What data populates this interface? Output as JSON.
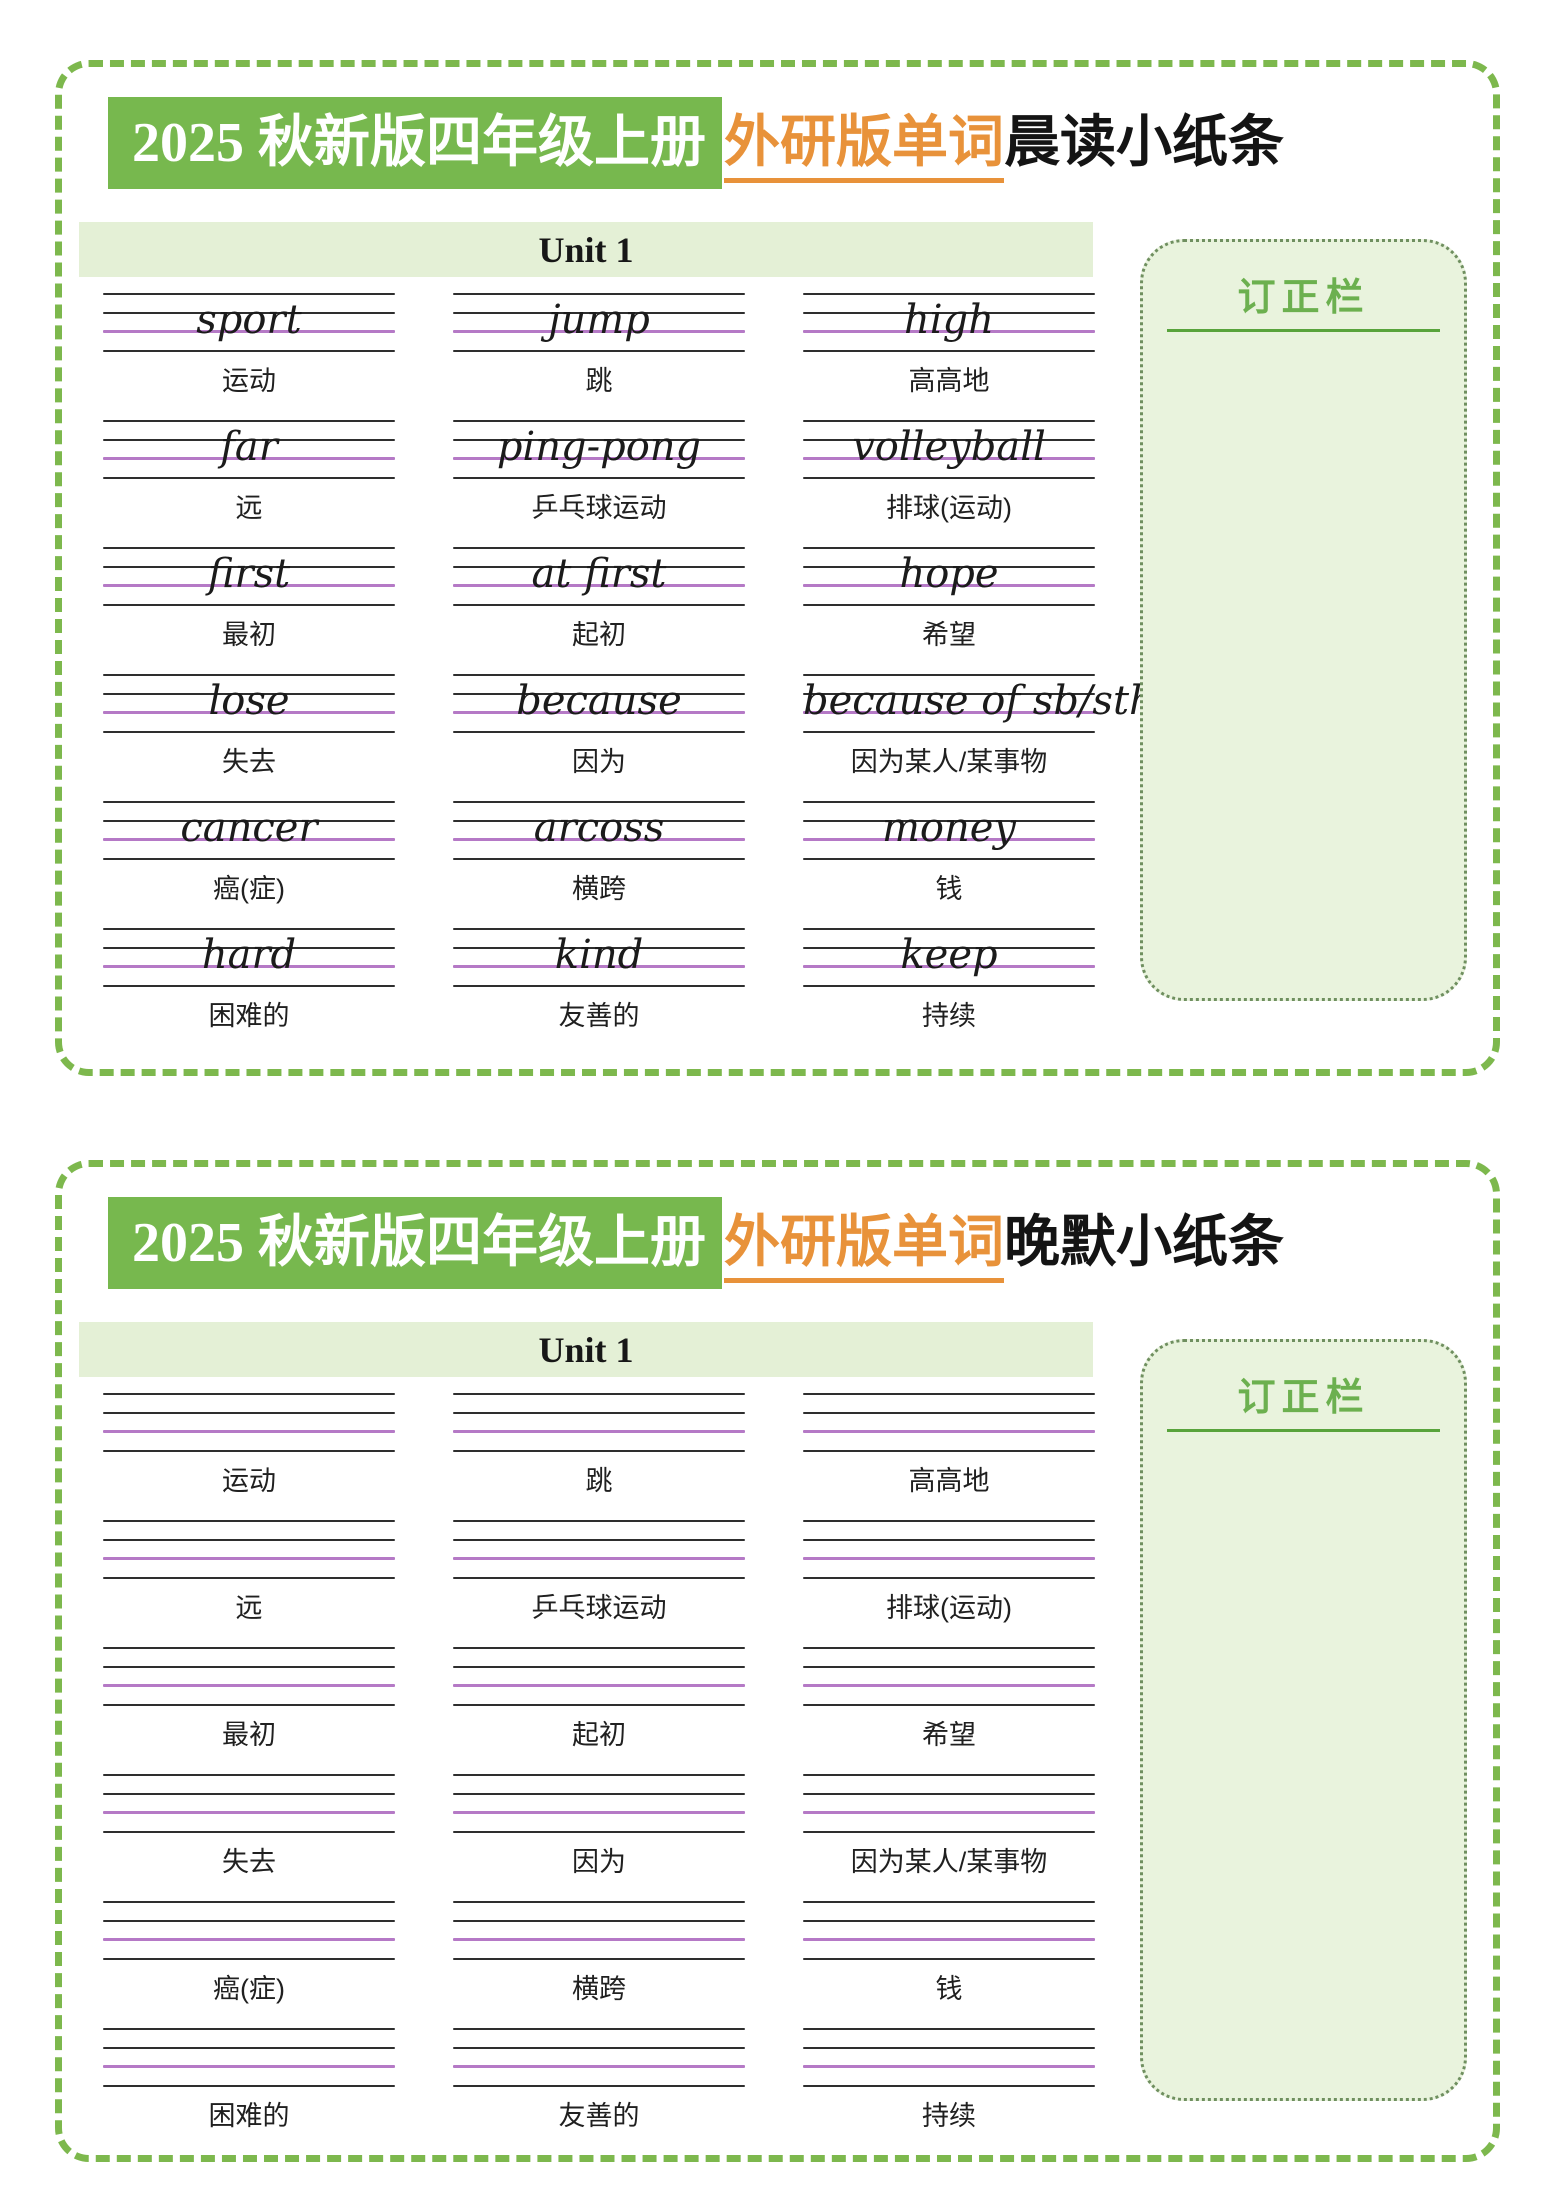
{
  "colors": {
    "card_border_green": "#7db84d",
    "title_highlight_bg": "#77b84e",
    "title_orange": "#e8923a",
    "unit_bar_bg": "#e4f0d6",
    "staff_line_black": "#2e2e2e",
    "staff_baseline_purple": "#b579c6",
    "panel_bg": "#e9f3dd",
    "panel_border": "#6f8f5f",
    "panel_title_green": "#6cb04f"
  },
  "cards": [
    {
      "id": "morning",
      "title_highlight": "2025 秋新版四年级上册",
      "title_orange": "外研版单词",
      "title_rest": "晨读小纸条",
      "unit": "Unit 1",
      "correction_label": "订正栏",
      "words": [
        {
          "en": "sport",
          "cn": "运动"
        },
        {
          "en": "jump",
          "cn": "跳"
        },
        {
          "en": "high",
          "cn": "高高地"
        },
        {
          "en": "far",
          "cn": "远"
        },
        {
          "en": "ping-pong",
          "cn": "乒乓球运动"
        },
        {
          "en": "volleyball",
          "cn": "排球(运动)"
        },
        {
          "en": "first",
          "cn": "最初"
        },
        {
          "en": "at first",
          "cn": "起初"
        },
        {
          "en": "hope",
          "cn": "希望"
        },
        {
          "en": "lose",
          "cn": "失去"
        },
        {
          "en": "because",
          "cn": "因为"
        },
        {
          "en": "because of sb/sth",
          "cn": "因为某人/某事物"
        },
        {
          "en": "cancer",
          "cn": "癌(症)"
        },
        {
          "en": "arcoss",
          "cn": "横跨"
        },
        {
          "en": "money",
          "cn": "钱"
        },
        {
          "en": "hard",
          "cn": "困难的"
        },
        {
          "en": "kind",
          "cn": "友善的"
        },
        {
          "en": "keep",
          "cn": "持续"
        }
      ]
    },
    {
      "id": "evening",
      "title_highlight": "2025 秋新版四年级上册",
      "title_orange": "外研版单词",
      "title_rest": "晚默小纸条",
      "unit": "Unit 1",
      "correction_label": "订正栏",
      "words": [
        {
          "cn": "运动"
        },
        {
          "cn": "跳"
        },
        {
          "cn": "高高地"
        },
        {
          "cn": "远"
        },
        {
          "cn": "乒乓球运动"
        },
        {
          "cn": "排球(运动)"
        },
        {
          "cn": "最初"
        },
        {
          "cn": "起初"
        },
        {
          "cn": "希望"
        },
        {
          "cn": "失去"
        },
        {
          "cn": "因为"
        },
        {
          "cn": "因为某人/某事物"
        },
        {
          "cn": "癌(症)"
        },
        {
          "cn": "横跨"
        },
        {
          "cn": "钱"
        },
        {
          "cn": "困难的"
        },
        {
          "cn": "友善的"
        },
        {
          "cn": "持续"
        }
      ]
    }
  ]
}
